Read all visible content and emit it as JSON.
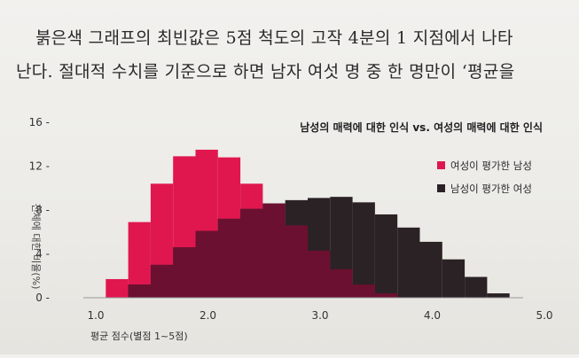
{
  "paragraph": {
    "line1": "붉은색 그래프의 최빈값은 5점 척도의 고작 4분의 1 지점에서 나타",
    "line2": "난다. 절대적 수치를 기준으로 하면 남자 여섯 명 중 한 명만이 ‘평균을"
  },
  "chart_data": {
    "type": "bar",
    "title": "남성의 매력에 대한 인식 vs. 여성의 매력에 대한 인식",
    "xlabel": "평균 점수(별점 1~5점)",
    "ylabel": "전체에 대한 비율(%)",
    "xlim": [
      1.0,
      5.0
    ],
    "ylim": [
      0,
      16
    ],
    "x_ticks": [
      "1.0",
      "2.0",
      "3.0",
      "4.0",
      "5.0"
    ],
    "y_ticks": [
      "0 -",
      "4 -",
      "8 -",
      "12 -",
      "16 -"
    ],
    "bin_edges": [
      1.0,
      1.2,
      1.4,
      1.6,
      1.8,
      2.0,
      2.2,
      2.4,
      2.6,
      2.8,
      3.0,
      3.2,
      3.4,
      3.6,
      3.8,
      4.0,
      4.2,
      4.4,
      4.6,
      4.8,
      5.0
    ],
    "series": [
      {
        "name": "여성이 평가한 남성",
        "color": "#e0174f",
        "values": [
          0.0,
          1.7,
          6.9,
          10.4,
          12.9,
          13.5,
          12.8,
          10.4,
          8.6,
          6.6,
          4.3,
          2.6,
          1.2,
          0.4,
          0.0,
          0.0,
          0.0,
          0.0,
          0.0,
          0.0
        ]
      },
      {
        "name": "남성이 평가한 여성",
        "color": "#2b2225",
        "values": [
          0.0,
          0.0,
          1.2,
          3.0,
          4.6,
          6.1,
          7.2,
          8.1,
          8.6,
          8.9,
          9.1,
          9.2,
          8.7,
          7.6,
          6.4,
          5.1,
          3.5,
          1.9,
          0.4,
          0.0
        ]
      }
    ],
    "overlap_color": "#6b1030",
    "legend_position": "top-right"
  }
}
